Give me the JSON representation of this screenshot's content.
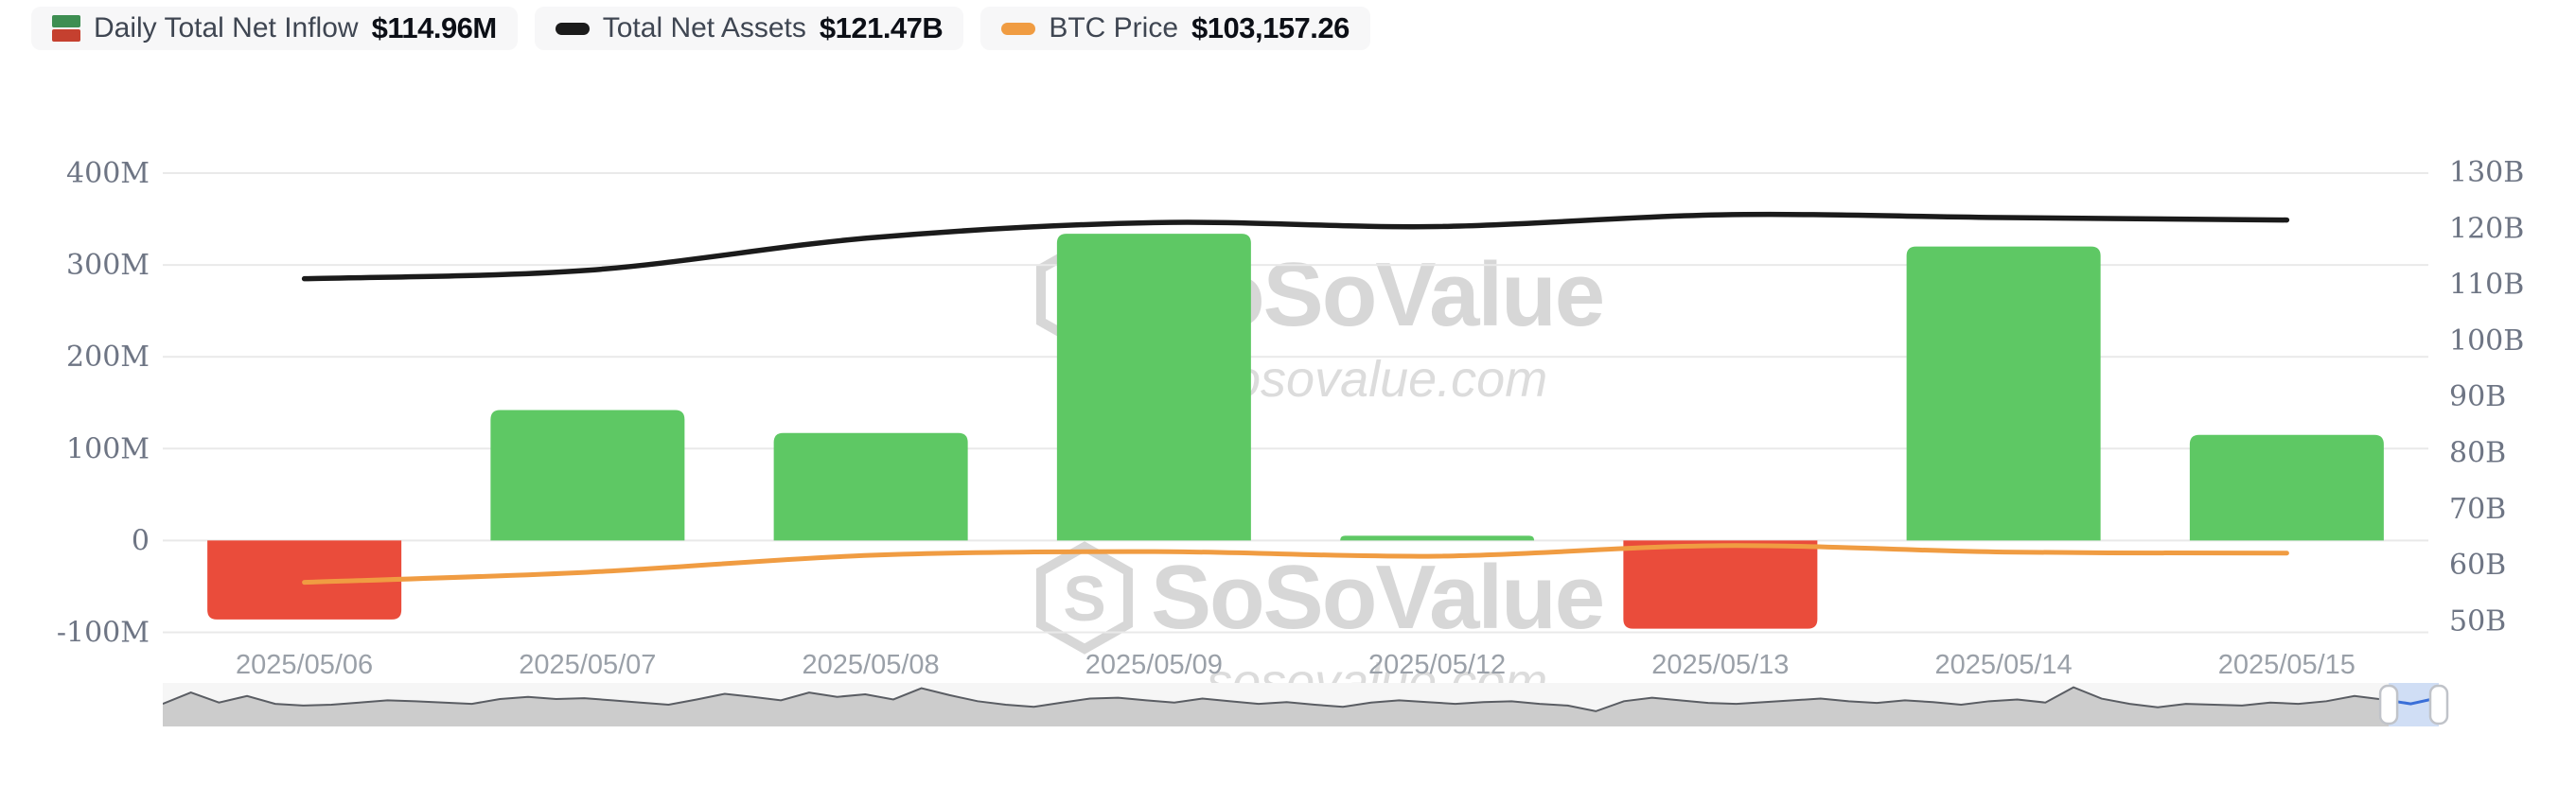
{
  "legend": {
    "items": [
      {
        "label": "Daily Total Net Inflow",
        "value": "$114.96M"
      },
      {
        "label": "Total Net Assets",
        "value": "$121.47B"
      },
      {
        "label": "BTC Price",
        "value": "$103,157.26"
      }
    ]
  },
  "watermark": {
    "brand": "SoSoValue",
    "domain": "sosovalue.com"
  },
  "chart_data": {
    "type": "bar",
    "title": "",
    "categories": [
      "2025/05/06",
      "2025/05/07",
      "2025/05/08",
      "2025/05/09",
      "2025/05/12",
      "2025/05/13",
      "2025/05/14",
      "2025/05/15"
    ],
    "series": [
      {
        "name": "Daily Total Net Inflow",
        "type": "bar",
        "axis": "left",
        "unit": "M USD",
        "values": [
          -86,
          142,
          117,
          334,
          5.2,
          -96,
          320,
          114.96
        ]
      },
      {
        "name": "Total Net Assets",
        "type": "line",
        "axis": "right",
        "unit": "B USD",
        "values": [
          111.0,
          112.5,
          118.3,
          121.0,
          120.3,
          122.4,
          121.9,
          121.47
        ]
      },
      {
        "name": "BTC Price",
        "type": "line",
        "axis": "hidden",
        "unit": "USD",
        "values": [
          96800,
          99000,
          102700,
          103500,
          102500,
          104800,
          103400,
          103157.26
        ]
      }
    ],
    "left_axis": {
      "tick_labels": [
        "400M",
        "300M",
        "200M",
        "100M",
        "0",
        "-100M"
      ],
      "tick_values": [
        400,
        300,
        200,
        100,
        0,
        -100
      ],
      "ylim": [
        -100,
        400
      ]
    },
    "right_axis": {
      "tick_labels": [
        "130B",
        "120B",
        "110B",
        "100B",
        "90B",
        "80B",
        "70B",
        "60B",
        "50B"
      ],
      "tick_values": [
        130,
        120,
        110,
        100,
        90,
        80,
        70,
        60,
        50
      ],
      "ylim": [
        50,
        130
      ]
    },
    "btc_axis": {
      "min": 86000,
      "max": 186000,
      "hidden": true
    },
    "grid": true,
    "legend_position": "top-left",
    "navigator": {
      "window": [
        0.978,
        1.0
      ],
      "profile": [
        0.52,
        0.78,
        0.55,
        0.7,
        0.52,
        0.48,
        0.5,
        0.55,
        0.6,
        0.58,
        0.55,
        0.52,
        0.63,
        0.68,
        0.63,
        0.65,
        0.6,
        0.55,
        0.5,
        0.62,
        0.75,
        0.68,
        0.6,
        0.78,
        0.68,
        0.74,
        0.62,
        0.88,
        0.72,
        0.58,
        0.5,
        0.45,
        0.55,
        0.64,
        0.66,
        0.6,
        0.55,
        0.64,
        0.58,
        0.52,
        0.56,
        0.5,
        0.45,
        0.55,
        0.6,
        0.56,
        0.52,
        0.56,
        0.58,
        0.52,
        0.48,
        0.35,
        0.58,
        0.66,
        0.6,
        0.54,
        0.52,
        0.56,
        0.6,
        0.64,
        0.58,
        0.54,
        0.6,
        0.56,
        0.5,
        0.58,
        0.62,
        0.55,
        0.9,
        0.64,
        0.52,
        0.44,
        0.52,
        0.5,
        0.48,
        0.55,
        0.52,
        0.58,
        0.7,
        0.62,
        0.52,
        0.66
      ]
    },
    "colors": {
      "bar_positive": "#5ec864",
      "bar_negative": "#ea4c3b",
      "net_assets_line": "#1b1b1b",
      "btc_price_line": "#f09c42",
      "gridline": "#e9e9e9",
      "legend_icon_green": "#3e8e52",
      "legend_icon_red": "#c5402f",
      "nav_fill": "#cccccc",
      "nav_stroke": "#5a5d63",
      "nav_bg": "#f6f6f6",
      "nav_window": "#ccdcf5",
      "nav_blue_line": "#3a6fd8",
      "handle_border": "#c0c3c9"
    }
  }
}
